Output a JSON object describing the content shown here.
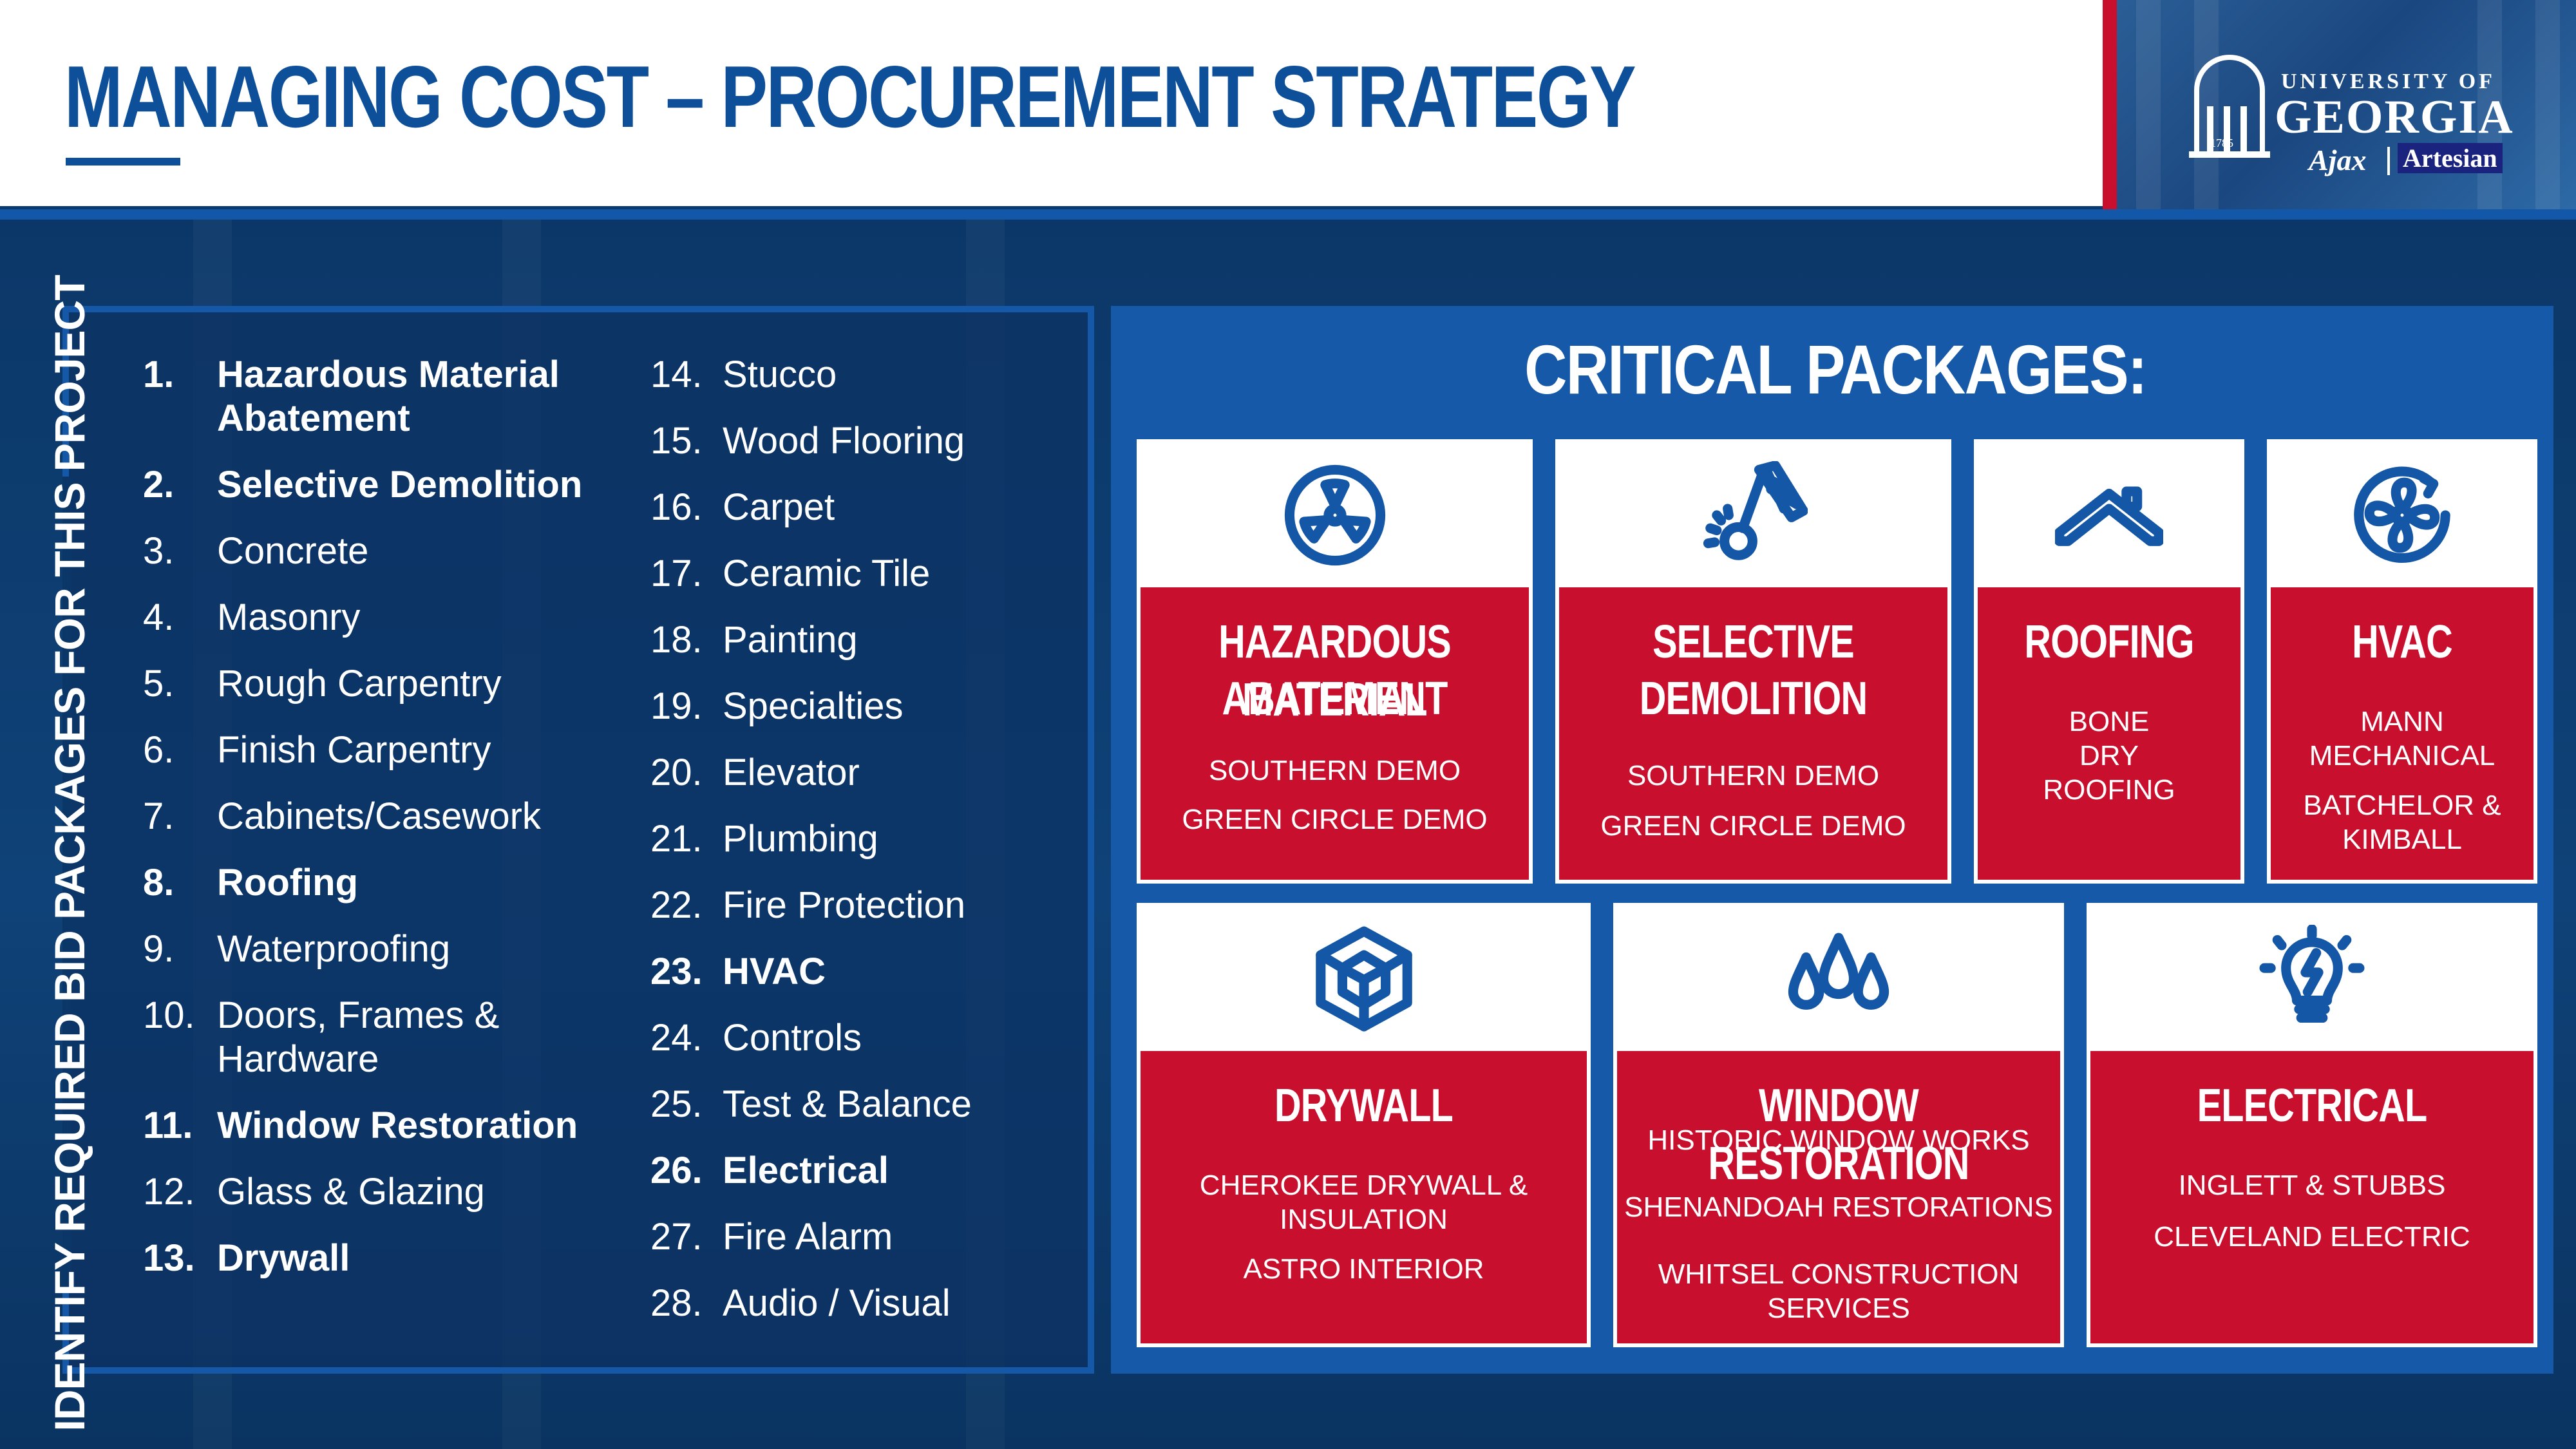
{
  "header": {
    "title": "MANAGING COST – PROCUREMENT STRATEGY"
  },
  "logo": {
    "seal_year": "1785",
    "university_line1": "UNIVERSITY OF",
    "university_line2": "GEORGIA",
    "partner_1": "Ajax",
    "partner_2": "Artesian"
  },
  "side_label": "IDENTIFY REQUIRED BID PACKAGES FOR THIS PROJECT",
  "packages_col1": [
    {
      "num": "1.",
      "name": "Hazardous Material Abatement",
      "critical": true
    },
    {
      "num": "2.",
      "name": "Selective Demolition",
      "critical": true
    },
    {
      "num": "3.",
      "name": "Concrete",
      "critical": false
    },
    {
      "num": "4.",
      "name": "Masonry",
      "critical": false
    },
    {
      "num": "5.",
      "name": "Rough Carpentry",
      "critical": false
    },
    {
      "num": "6.",
      "name": "Finish Carpentry",
      "critical": false
    },
    {
      "num": "7.",
      "name": "Cabinets/Casework",
      "critical": false
    },
    {
      "num": "8.",
      "name": "Roofing",
      "critical": true
    },
    {
      "num": "9.",
      "name": "Waterproofing",
      "critical": false
    },
    {
      "num": "10.",
      "name": "Doors, Frames & Hardware",
      "critical": false
    },
    {
      "num": "11.",
      "name": "Window Restoration",
      "critical": true
    },
    {
      "num": "12.",
      "name": "Glass & Glazing",
      "critical": false
    },
    {
      "num": "13.",
      "name": "Drywall",
      "critical": true
    }
  ],
  "packages_col2": [
    {
      "num": "14.",
      "name": "Stucco",
      "critical": false
    },
    {
      "num": "15.",
      "name": "Wood Flooring",
      "critical": false
    },
    {
      "num": "16.",
      "name": "Carpet",
      "critical": false
    },
    {
      "num": "17.",
      "name": "Ceramic Tile",
      "critical": false
    },
    {
      "num": "18.",
      "name": "Painting",
      "critical": false
    },
    {
      "num": "19.",
      "name": "Specialties",
      "critical": false
    },
    {
      "num": "20.",
      "name": "Elevator",
      "critical": false
    },
    {
      "num": "21.",
      "name": "Plumbing",
      "critical": false
    },
    {
      "num": "22.",
      "name": "Fire Protection",
      "critical": false
    },
    {
      "num": "23.",
      "name": "HVAC",
      "critical": true
    },
    {
      "num": "24.",
      "name": "Controls",
      "critical": false
    },
    {
      "num": "25.",
      "name": "Test & Balance",
      "critical": false
    },
    {
      "num": "26.",
      "name": "Electrical",
      "critical": true
    },
    {
      "num": "27.",
      "name": "Fire Alarm",
      "critical": false
    },
    {
      "num": "28.",
      "name": "Audio / Visual",
      "critical": false
    }
  ],
  "critical": {
    "title": "CRITICAL PACKAGES:",
    "cards": [
      {
        "icon": "radiation-icon",
        "title_lines": [
          "HAZARDOUS MATERIAL",
          "ABATEMENT"
        ],
        "subs": [
          "SOUTHERN DEMO",
          "GREEN CIRCLE DEMO"
        ]
      },
      {
        "icon": "wrecking-ball-icon",
        "title_lines": [
          "SELECTIVE",
          "DEMOLITION"
        ],
        "subs": [
          "SOUTHERN DEMO",
          "GREEN CIRCLE DEMO"
        ]
      },
      {
        "icon": "roof-icon",
        "title_lines": [
          "ROOFING"
        ],
        "subs": [
          "BONE DRY ROOFING"
        ]
      },
      {
        "icon": "fan-icon",
        "title_lines": [
          "HVAC"
        ],
        "subs": [
          "MANN MECHANICAL",
          "BATCHELOR & KIMBALL"
        ]
      },
      {
        "icon": "drywall-cube-icon",
        "title_lines": [
          "DRYWALL"
        ],
        "subs": [
          "CHEROKEE DRYWALL & INSULATION",
          "ASTRO INTERIOR"
        ]
      },
      {
        "icon": "water-drops-icon",
        "title_lines": [
          "WINDOW RESTORATION"
        ],
        "subs": [
          "HISTORIC WINDOW WORKS",
          "SHENANDOAH RESTORATIONS",
          "WHITSEL CONSTRUCTION SERVICES"
        ]
      },
      {
        "icon": "lightbulb-icon",
        "title_lines": [
          "ELECTRICAL"
        ],
        "subs": [
          "INGLETT & STUBBS",
          "CLEVELAND ELECTRIC"
        ]
      }
    ]
  },
  "colors": {
    "brand_blue": "#0e4f9a",
    "panel_blue": "#1559a8",
    "navy": "#0b3768",
    "accent_red": "#c8102e",
    "white": "#ffffff"
  }
}
